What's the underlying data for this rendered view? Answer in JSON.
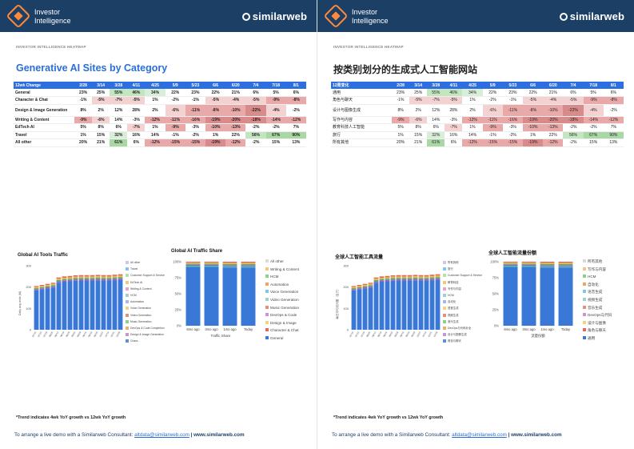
{
  "header": {
    "brand_line1": "Investor",
    "brand_line2": "Intelligence",
    "company": "similarweb"
  },
  "left": {
    "subtitle": "INVESTOR INTELLIGENCE HEATMAP",
    "title": "Generative AI Sites by Category",
    "table": {
      "headers": [
        "12wk Change",
        "2/28",
        "3/14",
        "3/28",
        "4/11",
        "4/25",
        "5/9",
        "5/23",
        "6/6",
        "6/20",
        "7/4",
        "7/18",
        "8/1"
      ],
      "rows": [
        [
          "General",
          "23%",
          "25%",
          "55%",
          "46%",
          "34%",
          "22%",
          "23%",
          "22%",
          "21%",
          "6%",
          "5%",
          "6%"
        ],
        [
          "Character & Chat",
          "-1%",
          "-5%",
          "-7%",
          "-5%",
          "1%",
          "-2%",
          "-1%",
          "-5%",
          "-4%",
          "-5%",
          "-9%",
          "-8%"
        ],
        [
          "Design & Image Generation",
          "8%",
          "2%",
          "12%",
          "28%",
          "2%",
          "-6%",
          "-11%",
          "-8%",
          "-10%",
          "-22%",
          "-4%",
          "-2%"
        ],
        [
          "Writing & Content",
          "-9%",
          "-6%",
          "14%",
          "-3%",
          "-12%",
          "-11%",
          "-16%",
          "-19%",
          "-20%",
          "-18%",
          "-14%",
          "-12%"
        ],
        [
          "EdTech AI",
          "5%",
          "8%",
          "6%",
          "-7%",
          "1%",
          "-9%",
          "-3%",
          "-10%",
          "-13%",
          "-2%",
          "-2%",
          "7%"
        ],
        [
          "Travel",
          "1%",
          "15%",
          "32%",
          "16%",
          "14%",
          "-1%",
          "-2%",
          "1%",
          "22%",
          "56%",
          "67%",
          "90%"
        ],
        [
          "All other",
          "20%",
          "21%",
          "61%",
          "6%",
          "-12%",
          "-15%",
          "-15%",
          "-19%",
          "-12%",
          "-2%",
          "15%",
          "13%"
        ]
      ]
    },
    "chart1": {
      "title": "Global AI Tools Traffic",
      "ylabel": "Daily avg visits (M)",
      "legend": [
        "All other",
        "Travel",
        "Customer Support & Service",
        "EdTech AI",
        "Writing & Content",
        "HCM",
        "Automation",
        "Voice Generation",
        "Video Generation",
        "Music Generation",
        "DevOps & Code Completion",
        "Design & Image Generation",
        "Chara..."
      ]
    },
    "chart2": {
      "title": "Global AI Traffic Share",
      "xlabel": "Traffic Share",
      "legend": [
        "All other",
        "Writing & Content",
        "HCM",
        "Automation",
        "Voice Generation",
        "Video Generation",
        "Music Generation",
        "DevOps & Code",
        "Design & Image",
        "Character & Chat",
        "General"
      ]
    },
    "footnote": "*Trend indicates 4wk YoY growth vs 12wk YoY growth",
    "contact_prefix": "To arrange a live demo with a Similarweb Consultant: ",
    "contact_email": "altdata@similarweb.com",
    "contact_sep": " | ",
    "contact_site": "www.similarweb.com"
  },
  "right": {
    "subtitle": "INVESTOR INTELLIGENCE HEATMAP",
    "title": "按类别划分的生成式人工智能网站",
    "table": {
      "headers": [
        "12周变化",
        "2/28",
        "3/14",
        "3/28",
        "4/11",
        "4/25",
        "5/9",
        "5/23",
        "6/6",
        "6/20",
        "7/4",
        "7/18",
        "8/1"
      ],
      "rows": [
        [
          "通用",
          "23%",
          "25%",
          "55%",
          "46%",
          "34%",
          "22%",
          "23%",
          "22%",
          "21%",
          "6%",
          "5%",
          "6%"
        ],
        [
          "角色与聊天",
          "-1%",
          "-5%",
          "-7%",
          "-5%",
          "1%",
          "-2%",
          "-1%",
          "-5%",
          "-4%",
          "-5%",
          "-9%",
          "-8%"
        ],
        [
          "设计与图像生成",
          "8%",
          "2%",
          "12%",
          "28%",
          "2%",
          "-6%",
          "-11%",
          "-8%",
          "-10%",
          "-22%",
          "-4%",
          "-2%"
        ],
        [
          "写作与内容",
          "-9%",
          "-6%",
          "14%",
          "-3%",
          "-12%",
          "-11%",
          "-16%",
          "-19%",
          "-20%",
          "-18%",
          "-14%",
          "-12%"
        ],
        [
          "教育科技人工智能",
          "5%",
          "8%",
          "6%",
          "-7%",
          "1%",
          "-9%",
          "-3%",
          "-10%",
          "-13%",
          "-2%",
          "-2%",
          "7%"
        ],
        [
          "旅行",
          "1%",
          "15%",
          "32%",
          "16%",
          "14%",
          "-1%",
          "-2%",
          "1%",
          "22%",
          "56%",
          "67%",
          "90%"
        ],
        [
          "所有其他",
          "20%",
          "21%",
          "61%",
          "6%",
          "-12%",
          "-15%",
          "-15%",
          "-19%",
          "-12%",
          "-2%",
          "15%",
          "13%"
        ]
      ]
    },
    "chart1": {
      "title": "全球人工智能工具流量",
      "ylabel": "每日平均访问量（百万）",
      "legend": [
        "所有其他",
        "旅行",
        "Customer Support & Service",
        "教育科技",
        "写作与内容",
        "HCM",
        "自动化",
        "语音生成",
        "视频生成",
        "音乐生成",
        "DevOps与代码补全",
        "设计与图像生成",
        "角色与聊天"
      ]
    },
    "chart2": {
      "title": "全球人工智能流量份额",
      "xlabel": "流量份额",
      "legend": [
        "所有其他",
        "写作与内容",
        "HCM",
        "自动化",
        "语音生成",
        "视频生成",
        "音乐生成",
        "DevOps与代码",
        "设计与图像",
        "角色与聊天",
        "通用"
      ]
    },
    "footnote": "*Trend indicates 4wk YoY growth vs 12wk YoY growth",
    "contact_prefix": "To arrange a live demo with a Similarweb Consultant: ",
    "contact_email": "altdata@similarweb.com",
    "contact_sep": " | ",
    "contact_site": "www.similarweb.com"
  },
  "chart_data": [
    {
      "type": "bar",
      "title": "Global AI Tools Traffic",
      "ylabel": "Daily avg visits (M)",
      "ylim": [
        0,
        300
      ],
      "yticks": [
        "300",
        "200",
        "100",
        "0"
      ],
      "categories": [
        "07/15",
        "07/22",
        "07/29",
        "08/05",
        "08/12",
        "08/19",
        "08/26",
        "09/02",
        "09/09",
        "09/16",
        "09/23",
        "09/30",
        "10/07",
        "10/14",
        "10/21",
        "10/28"
      ],
      "values": [
        205,
        210,
        215,
        220,
        245,
        250,
        252,
        255,
        256,
        256,
        256,
        257,
        256,
        256,
        258,
        260
      ]
    },
    {
      "type": "bar",
      "title": "Global AI Traffic Share",
      "xlabel": "Traffic Share",
      "ylim": [
        0,
        100
      ],
      "yticks": [
        "100%",
        "75%",
        "50%",
        "25%",
        "0%"
      ],
      "categories": [
        "6mo ago",
        "3mo ago",
        "1mo ago",
        "Today"
      ],
      "values": [
        92,
        92,
        91,
        91
      ]
    }
  ]
}
